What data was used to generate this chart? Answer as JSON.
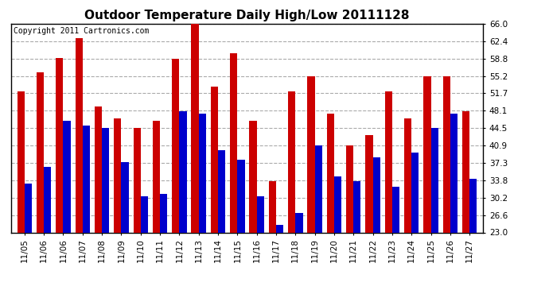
{
  "title": "Outdoor Temperature Daily High/Low 20111128",
  "copyright": "Copyright 2011 Cartronics.com",
  "dates": [
    "11/05",
    "11/06",
    "11/06",
    "11/07",
    "11/08",
    "11/09",
    "11/10",
    "11/11",
    "11/12",
    "11/13",
    "11/14",
    "11/15",
    "11/16",
    "11/17",
    "11/18",
    "11/19",
    "11/20",
    "11/21",
    "11/22",
    "11/23",
    "11/24",
    "11/25",
    "11/26",
    "11/27"
  ],
  "highs": [
    52.0,
    56.0,
    59.0,
    63.0,
    49.0,
    46.5,
    44.5,
    46.0,
    58.8,
    66.0,
    53.0,
    60.0,
    46.0,
    33.5,
    52.0,
    55.2,
    47.5,
    40.9,
    43.0,
    52.0,
    46.5,
    55.2,
    55.2,
    48.0
  ],
  "lows": [
    33.0,
    36.5,
    46.0,
    45.0,
    44.5,
    37.5,
    30.5,
    31.0,
    48.0,
    47.5,
    40.0,
    38.0,
    30.5,
    24.5,
    27.0,
    40.9,
    34.5,
    33.5,
    38.5,
    32.5,
    39.5,
    44.5,
    47.5,
    34.0
  ],
  "bar_color_high": "#cc0000",
  "bar_color_low": "#0000cc",
  "background_color": "#ffffff",
  "plot_bg_color": "#ffffff",
  "grid_color": "#aaaaaa",
  "ylim": [
    23.0,
    66.0
  ],
  "yticks": [
    23.0,
    26.6,
    30.2,
    33.8,
    37.3,
    40.9,
    44.5,
    48.1,
    51.7,
    55.2,
    58.8,
    62.4,
    66.0
  ],
  "title_fontsize": 11,
  "copyright_fontsize": 7,
  "tick_fontsize": 7.5,
  "bar_width": 0.38
}
